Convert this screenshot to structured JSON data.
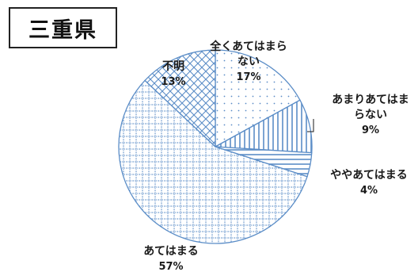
{
  "title": "三重県",
  "chart_data": {
    "type": "pie",
    "slices": [
      {
        "label_lines": [
          "全くあてはまら",
          "ない"
        ],
        "value": 17,
        "pct": "17%",
        "pattern": "dots"
      },
      {
        "label_lines": [
          "あまりあてはま",
          "らない"
        ],
        "value": 9,
        "pct": "9%",
        "pattern": "vlines"
      },
      {
        "label_lines": [
          "ややあてはまる"
        ],
        "value": 4,
        "pct": "4%",
        "pattern": "hlines"
      },
      {
        "label_lines": [
          "あてはまる"
        ],
        "value": 57,
        "pct": "57%",
        "pattern": "grid"
      },
      {
        "label_lines": [
          "不明"
        ],
        "value": 13,
        "pct": "13%",
        "pattern": "cross"
      }
    ],
    "start_angle_deg": 0,
    "direction": "clockwise",
    "colors": {
      "stroke": "#5b8dc7",
      "fill": "#ffffff"
    }
  }
}
